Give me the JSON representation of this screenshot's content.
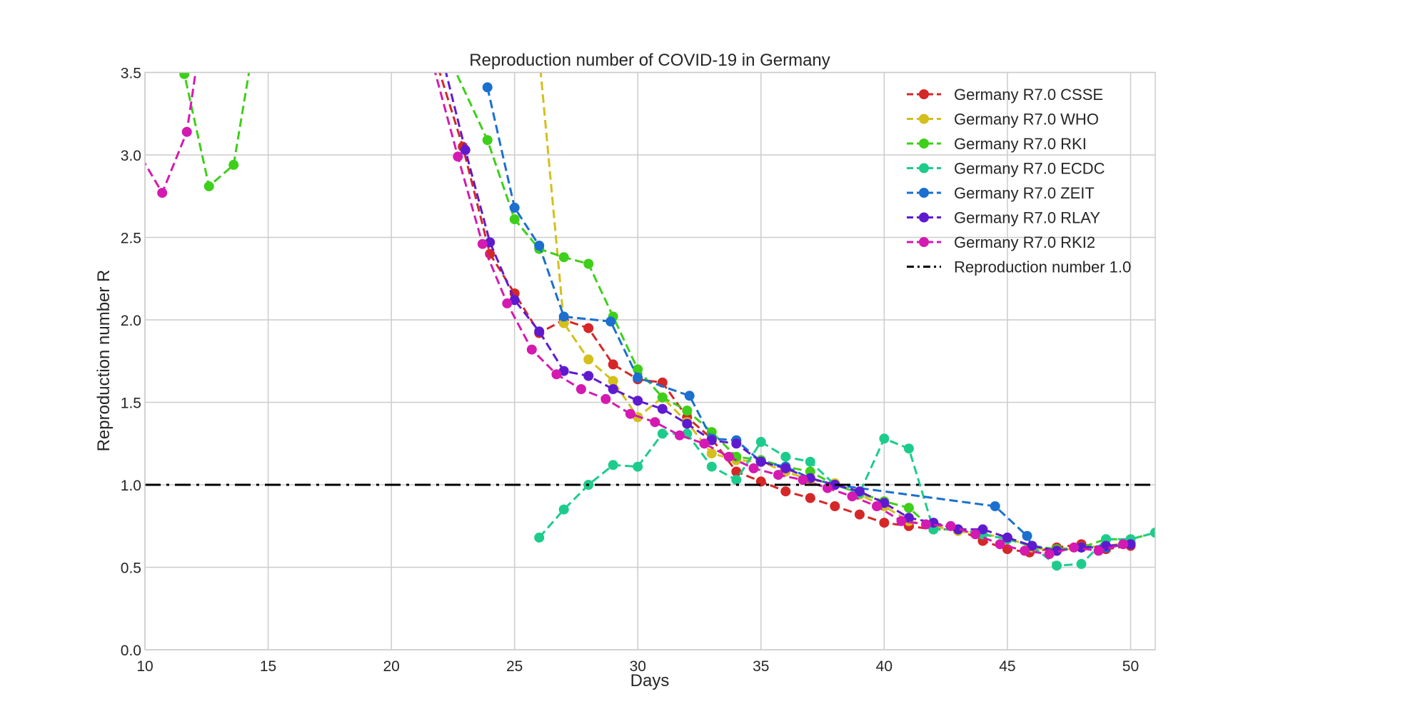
{
  "chart_data": {
    "type": "line",
    "title": "Reproduction number of COVID-19 in Germany",
    "xlabel": "Days",
    "ylabel": "Reproduction number R",
    "xlim": [
      10,
      51
    ],
    "ylim": [
      0,
      3.5
    ],
    "xticks": [
      "10",
      "15",
      "20",
      "25",
      "30",
      "35",
      "40",
      "45",
      "50"
    ],
    "yticks": [
      "0.0",
      "0.5",
      "1.0",
      "1.5",
      "2.0",
      "2.5",
      "3.0",
      "3.5"
    ],
    "grid": true,
    "legend_position": "top-right",
    "series": [
      {
        "name": "Germany R7.0 CSSE",
        "color": "#d62728",
        "points": [
          [
            20.5,
            4.2
          ],
          [
            22.9,
            3.05
          ],
          [
            24,
            2.4
          ],
          [
            25,
            2.16
          ],
          [
            26,
            1.92
          ],
          [
            27,
            2.0
          ],
          [
            28,
            1.95
          ],
          [
            29,
            1.73
          ],
          [
            30,
            1.64
          ],
          [
            31,
            1.62
          ],
          [
            32,
            1.41
          ],
          [
            33,
            1.28
          ],
          [
            34,
            1.08
          ],
          [
            35,
            1.02
          ],
          [
            36,
            0.96
          ],
          [
            37,
            0.92
          ],
          [
            38,
            0.87
          ],
          [
            39,
            0.82
          ],
          [
            40,
            0.77
          ],
          [
            41,
            0.75
          ],
          [
            42,
            0.73
          ],
          [
            43,
            0.73
          ],
          [
            44,
            0.66
          ],
          [
            45,
            0.61
          ],
          [
            45.9,
            0.59
          ],
          [
            47,
            0.62
          ],
          [
            48,
            0.64
          ],
          [
            49,
            0.61
          ],
          [
            50,
            0.63
          ]
        ]
      },
      {
        "name": "Germany R7.0 WHO",
        "color": "#d4bf1c",
        "points": [
          [
            26,
            3.6
          ],
          [
            27,
            1.98
          ],
          [
            28,
            1.76
          ],
          [
            29,
            1.63
          ],
          [
            30,
            1.41
          ],
          [
            31,
            1.53
          ],
          [
            32,
            1.38
          ],
          [
            33,
            1.19
          ],
          [
            34,
            1.15
          ],
          [
            35,
            1.14
          ],
          [
            36,
            1.08
          ],
          [
            37,
            1.03
          ],
          [
            38,
            1.01
          ],
          [
            39,
            0.94
          ],
          [
            40,
            0.87
          ],
          [
            41,
            0.78
          ],
          [
            42,
            0.75
          ],
          [
            43,
            0.72
          ],
          [
            44,
            0.7
          ],
          [
            45,
            0.68
          ],
          [
            46,
            0.62
          ],
          [
            47,
            0.6
          ],
          [
            48,
            0.62
          ],
          [
            49,
            0.63
          ],
          [
            50,
            0.65
          ]
        ]
      },
      {
        "name": "Germany R7.0 RKI",
        "color": "#3ecf1a",
        "points": [
          [
            11,
            3.75
          ],
          [
            11.6,
            3.49
          ],
          [
            12.6,
            2.81
          ],
          [
            13.6,
            2.94
          ],
          [
            14.5,
            3.75
          ],
          [
            22,
            3.7
          ],
          [
            23.9,
            3.09
          ],
          [
            25,
            2.61
          ],
          [
            26,
            2.43
          ],
          [
            27,
            2.38
          ],
          [
            28,
            2.34
          ],
          [
            29,
            2.02
          ],
          [
            30,
            1.7
          ],
          [
            31,
            1.53
          ],
          [
            32,
            1.45
          ],
          [
            33,
            1.32
          ],
          [
            34,
            1.17
          ],
          [
            35,
            1.15
          ],
          [
            36,
            1.11
          ],
          [
            37,
            1.08
          ],
          [
            38,
            1.0
          ],
          [
            39,
            0.95
          ],
          [
            40,
            0.9
          ],
          [
            41,
            0.86
          ],
          [
            42,
            0.73
          ],
          [
            43,
            0.73
          ],
          [
            44,
            0.7
          ],
          [
            45,
            0.67
          ],
          [
            46,
            0.63
          ],
          [
            47,
            0.61
          ],
          [
            48,
            0.62
          ],
          [
            49,
            0.67
          ],
          [
            50,
            0.67
          ],
          [
            51,
            0.71
          ]
        ]
      },
      {
        "name": "Germany R7.0 ECDC",
        "color": "#1dcc8c",
        "points": [
          [
            26,
            0.68
          ],
          [
            27,
            0.85
          ],
          [
            28,
            1.0
          ],
          [
            29,
            1.12
          ],
          [
            30,
            1.11
          ],
          [
            31,
            1.31
          ],
          [
            32,
            1.31
          ],
          [
            33,
            1.11
          ],
          [
            34,
            1.03
          ],
          [
            35,
            1.26
          ],
          [
            36,
            1.17
          ],
          [
            37,
            1.14
          ],
          [
            38,
            1.0
          ],
          [
            39,
            0.95
          ],
          [
            40,
            1.28
          ],
          [
            41,
            1.22
          ],
          [
            42,
            0.73
          ],
          [
            43,
            0.73
          ],
          [
            44,
            0.7
          ],
          [
            45,
            0.67
          ],
          [
            46,
            0.63
          ],
          [
            47,
            0.51
          ],
          [
            48,
            0.52
          ],
          [
            49,
            0.67
          ],
          [
            50,
            0.67
          ],
          [
            51,
            0.71
          ]
        ]
      },
      {
        "name": "Germany R7.0 ZEIT",
        "color": "#1a6fcf",
        "points": [
          [
            23.9,
            3.41
          ],
          [
            25,
            2.68
          ],
          [
            26,
            2.45
          ],
          [
            27,
            2.02
          ],
          [
            28.9,
            1.99
          ],
          [
            30,
            1.65
          ],
          [
            32.1,
            1.54
          ],
          [
            33,
            1.28
          ],
          [
            34,
            1.27
          ],
          [
            35,
            1.14
          ],
          [
            36,
            1.11
          ],
          [
            37,
            1.04
          ],
          [
            38,
            1.0
          ],
          [
            44.5,
            0.87
          ],
          [
            45.8,
            0.69
          ],
          [
            46,
            0.63
          ],
          [
            47,
            0.6
          ],
          [
            48,
            0.62
          ],
          [
            49,
            0.62
          ],
          [
            50,
            0.64
          ]
        ]
      },
      {
        "name": "Germany R7.0 RLAY",
        "color": "#5f1ad0",
        "points": [
          [
            21.8,
            3.75
          ],
          [
            23,
            3.03
          ],
          [
            24,
            2.47
          ],
          [
            25,
            2.12
          ],
          [
            26,
            1.93
          ],
          [
            27,
            1.69
          ],
          [
            28,
            1.66
          ],
          [
            29,
            1.58
          ],
          [
            30,
            1.51
          ],
          [
            31,
            1.46
          ],
          [
            32,
            1.37
          ],
          [
            33,
            1.27
          ],
          [
            34,
            1.25
          ],
          [
            35,
            1.14
          ],
          [
            36,
            1.1
          ],
          [
            37,
            1.04
          ],
          [
            38,
            1.0
          ],
          [
            39,
            0.96
          ],
          [
            40,
            0.89
          ],
          [
            41,
            0.8
          ],
          [
            42,
            0.77
          ],
          [
            43,
            0.73
          ],
          [
            44,
            0.73
          ],
          [
            45,
            0.68
          ],
          [
            46,
            0.63
          ],
          [
            47,
            0.6
          ],
          [
            48,
            0.62
          ],
          [
            49,
            0.63
          ],
          [
            50,
            0.64
          ]
        ]
      },
      {
        "name": "Germany R7.0 RKI2",
        "color": "#d41ab0",
        "points": [
          [
            9.6,
            3.05
          ],
          [
            10.7,
            2.77
          ],
          [
            11.7,
            3.14
          ],
          [
            12.3,
            3.75
          ],
          [
            21.6,
            3.6
          ],
          [
            22.7,
            2.99
          ],
          [
            23.7,
            2.46
          ],
          [
            24.7,
            2.1
          ],
          [
            25.7,
            1.82
          ],
          [
            26.7,
            1.67
          ],
          [
            27.7,
            1.58
          ],
          [
            28.7,
            1.52
          ],
          [
            29.7,
            1.43
          ],
          [
            30.7,
            1.38
          ],
          [
            31.7,
            1.3
          ],
          [
            32.7,
            1.25
          ],
          [
            33.7,
            1.17
          ],
          [
            34.7,
            1.1
          ],
          [
            35.7,
            1.06
          ],
          [
            36.7,
            1.03
          ],
          [
            37.7,
            0.98
          ],
          [
            38.7,
            0.93
          ],
          [
            39.7,
            0.87
          ],
          [
            40.7,
            0.78
          ],
          [
            41.7,
            0.76
          ],
          [
            42.7,
            0.75
          ],
          [
            43.7,
            0.7
          ],
          [
            44.7,
            0.64
          ],
          [
            45.7,
            0.6
          ],
          [
            46.7,
            0.58
          ],
          [
            47.7,
            0.62
          ],
          [
            48.7,
            0.6
          ],
          [
            49.7,
            0.64
          ]
        ]
      },
      {
        "name": "Reproduction number 1.0",
        "color": "#000000",
        "style": "dashdot",
        "points": [
          [
            10,
            1.0
          ],
          [
            51,
            1.0
          ]
        ]
      }
    ]
  }
}
